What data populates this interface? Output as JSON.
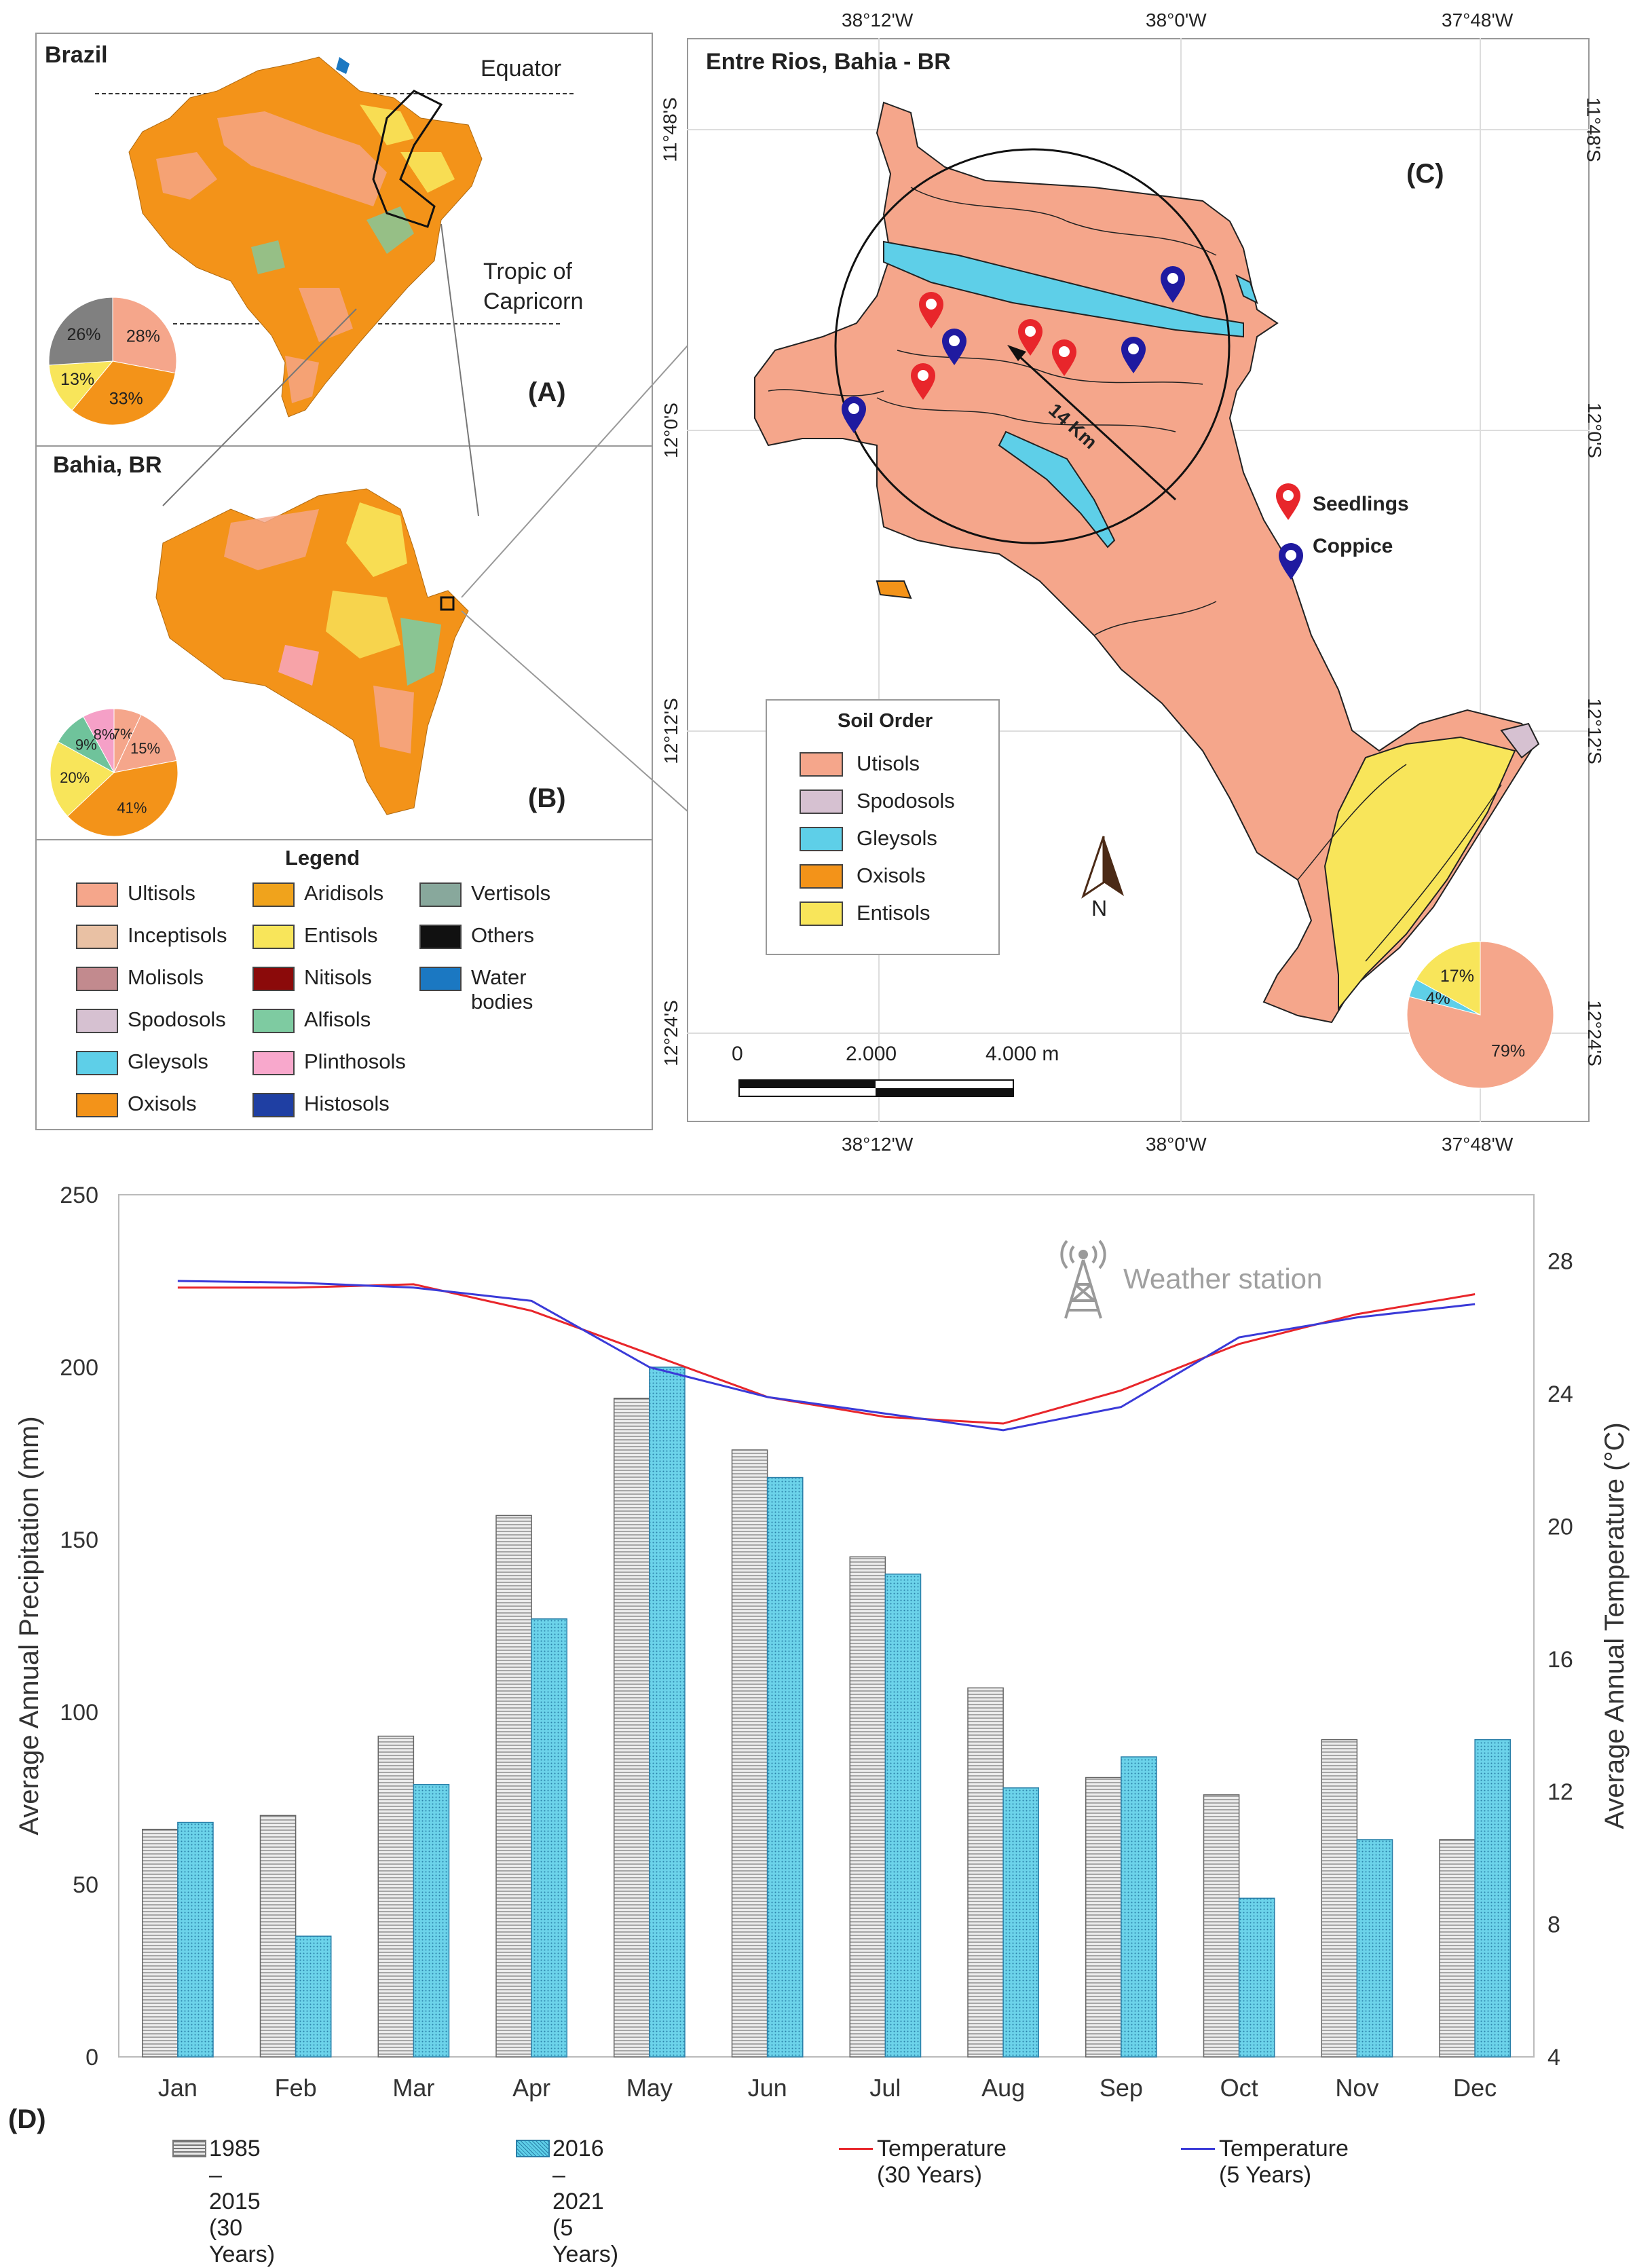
{
  "panel_a": {
    "title": "Brazil",
    "equator": "Equator",
    "tropic": "Tropic of\nCapricorn",
    "tag": "(A)",
    "pie": [
      {
        "label": "28%",
        "value": 28,
        "color": "#f5a68b"
      },
      {
        "label": "33%",
        "value": 33,
        "color": "#f39319"
      },
      {
        "label": "13%",
        "value": 13,
        "color": "#f8e55a"
      },
      {
        "label": "26%",
        "value": 26,
        "color": "#808080"
      }
    ]
  },
  "panel_b": {
    "title": "Bahia, BR",
    "tag": "(B)",
    "pie": [
      {
        "label": "7%",
        "value": 7,
        "color": "#f5a68b"
      },
      {
        "label": "15%",
        "value": 15,
        "color": "#f5a68b"
      },
      {
        "label": "41%",
        "value": 41,
        "color": "#f39319"
      },
      {
        "label": "20%",
        "value": 20,
        "color": "#f8e55a"
      },
      {
        "label": "9%",
        "value": 9,
        "color": "#6fc39b"
      },
      {
        "label": "8%",
        "value": 8,
        "color": "#f5a0c7"
      }
    ]
  },
  "legend": {
    "title": "Legend",
    "items": [
      {
        "label": "Ultisols",
        "color": "#f5a68b"
      },
      {
        "label": "Inceptisols",
        "color": "#e9c1a4"
      },
      {
        "label": "Molisols",
        "color": "#c28a8e"
      },
      {
        "label": "Spodosols",
        "color": "#d6c1d1"
      },
      {
        "label": "Gleysols",
        "color": "#5ecfe8"
      },
      {
        "label": "Oxisols",
        "color": "#f39319"
      },
      {
        "label": "Aridisols",
        "color": "#f0a31c"
      },
      {
        "label": "Entisols",
        "color": "#f8e55a"
      },
      {
        "label": "Nitisols",
        "color": "#8b0a0a"
      },
      {
        "label": "Alfisols",
        "color": "#7ecba1"
      },
      {
        "label": "Plinthosols",
        "color": "#f8a8cc"
      },
      {
        "label": "Histosols",
        "color": "#1f3fa3"
      },
      {
        "label": "Vertisols",
        "color": "#88a89c"
      },
      {
        "label": "Others",
        "color": "#111111"
      },
      {
        "label": "Water bodies",
        "color": "#1b78c2"
      }
    ]
  },
  "panel_c": {
    "title": "Entre Rios, Bahia - BR",
    "tag": "(C)",
    "lon_ticks": [
      "38°12'W",
      "38°0'W",
      "37°48'W"
    ],
    "lat_ticks": [
      "11°48'S",
      "12°0'S",
      "12°12'S",
      "12°24'S"
    ],
    "radius_label": "14 Km",
    "seedlings": "Seedlings",
    "coppice": "Coppice",
    "north": "N",
    "scale": {
      "zero": "0",
      "mid": "2.000",
      "end": "4.000 m"
    },
    "soil_order": {
      "title": "Soil Order",
      "items": [
        {
          "label": "Utisols",
          "color": "#f5a68b"
        },
        {
          "label": "Spodosols",
          "color": "#d6c1d1"
        },
        {
          "label": "Gleysols",
          "color": "#5ecfe8"
        },
        {
          "label": "Oxisols",
          "color": "#f39319"
        },
        {
          "label": "Entisols",
          "color": "#f8e55a"
        }
      ]
    },
    "pie": [
      {
        "label": "79%",
        "value": 79,
        "color": "#f5a68b"
      },
      {
        "label": "4%",
        "value": 4,
        "color": "#5ecfe8"
      },
      {
        "label": "17%",
        "value": 17,
        "color": "#f8e55a"
      }
    ],
    "colors": {
      "seedling": "#e8262b",
      "coppice": "#1f1aa0"
    }
  },
  "chart_data": {
    "type": "bar",
    "tag": "(D)",
    "categories": [
      "Jan",
      "Feb",
      "Mar",
      "Apr",
      "May",
      "Jun",
      "Jul",
      "Aug",
      "Sep",
      "Oct",
      "Nov",
      "Dec"
    ],
    "ylabel": "Average Annual Precipitation (mm)",
    "y2label": "Average Annual Temperature (°C)",
    "ylim": [
      0,
      250
    ],
    "y2lim": [
      4,
      30
    ],
    "yticks": [
      "0",
      "50",
      "100",
      "150",
      "200",
      "250"
    ],
    "y2ticks": [
      "4",
      "8",
      "12",
      "16",
      "20",
      "24",
      "28"
    ],
    "annotation": "Weather station",
    "series": [
      {
        "name": "1985 – 2015 (30 Years)",
        "type": "bar",
        "values": [
          66,
          70,
          93,
          157,
          191,
          176,
          145,
          107,
          81,
          76,
          92,
          63
        ]
      },
      {
        "name": "2016 – 2021 (5 Years)",
        "type": "bar",
        "values": [
          68,
          35,
          79,
          127,
          200,
          168,
          140,
          78,
          87,
          46,
          63,
          92
        ]
      },
      {
        "name": "Temperature (30 Years)",
        "type": "line",
        "axis": "right",
        "color": "#e8262b",
        "values": [
          27.2,
          27.2,
          27.3,
          26.5,
          25.2,
          23.9,
          23.3,
          23.1,
          24.1,
          25.5,
          26.4,
          27.0
        ]
      },
      {
        "name": "Temperature (5 Years)",
        "type": "line",
        "axis": "right",
        "color": "#3a3ad8",
        "values": [
          27.4,
          27.35,
          27.2,
          26.8,
          24.8,
          23.9,
          23.4,
          22.9,
          23.6,
          25.7,
          26.3,
          26.7
        ]
      }
    ]
  }
}
